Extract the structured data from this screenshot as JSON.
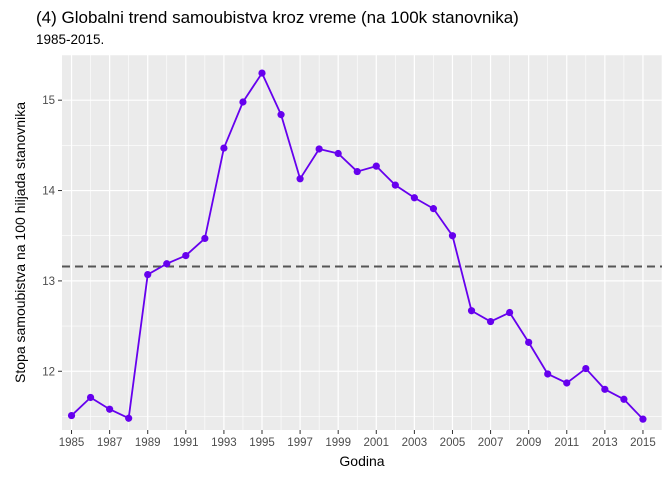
{
  "chart_data": {
    "type": "line",
    "title": "(4) Globalni trend samoubistva kroz vreme (na 100k stanovnika)",
    "subtitle": "1985-2015.",
    "xlabel": "Godina",
    "ylabel": "Stopa samoubistva na 100 hiljada stanovnika",
    "x": [
      1985,
      1986,
      1987,
      1988,
      1989,
      1990,
      1991,
      1992,
      1993,
      1994,
      1995,
      1996,
      1997,
      1998,
      1999,
      2000,
      2001,
      2002,
      2003,
      2004,
      2005,
      2006,
      2007,
      2008,
      2009,
      2010,
      2011,
      2012,
      2013,
      2014,
      2015
    ],
    "series": [
      {
        "values": [
          11.51,
          11.71,
          11.58,
          11.48,
          13.07,
          13.19,
          13.28,
          13.47,
          14.47,
          14.98,
          15.3,
          14.84,
          14.13,
          14.46,
          14.41,
          14.21,
          14.27,
          14.06,
          13.92,
          13.8,
          13.5,
          12.67,
          12.55,
          12.65,
          12.32,
          11.97,
          11.87,
          12.03,
          11.8,
          11.69,
          11.47
        ],
        "color": "#6600ee"
      }
    ],
    "reference_line": {
      "y": 13.16,
      "style": "dashed",
      "color": "#555555"
    },
    "x_ticks": [
      "1985",
      "1987",
      "1989",
      "1991",
      "1993",
      "1995",
      "1997",
      "1999",
      "2001",
      "2003",
      "2005",
      "2007",
      "2009",
      "2011",
      "2013",
      "2015"
    ],
    "y_ticks": [
      "12",
      "13",
      "14",
      "15"
    ],
    "xlim": [
      1984.5,
      2016
    ],
    "ylim": [
      11.35,
      15.5
    ],
    "grid": true,
    "legend": "none",
    "panel_background": "#ebebeb",
    "grid_color": "#ffffff"
  }
}
